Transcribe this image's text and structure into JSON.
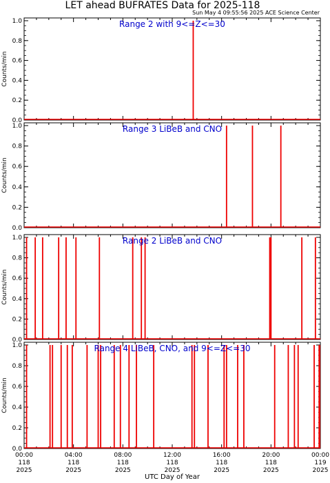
{
  "header": {
    "title": "LET ahead BUFRATES Data for 2025-118",
    "timestamp": "Sun May  4 09:55:56 2025 ACE Science Center"
  },
  "x_axis": {
    "label": "UTC Day of Year",
    "ticks": [
      {
        "x": 0,
        "l1": "00:00",
        "l2": "118",
        "l3": "2025"
      },
      {
        "x": 4,
        "l1": "04:00",
        "l2": "118",
        "l3": "2025"
      },
      {
        "x": 8,
        "l1": "08:00",
        "l2": "118",
        "l3": "2025"
      },
      {
        "x": 12,
        "l1": "12:00",
        "l2": "118",
        "l3": "2025"
      },
      {
        "x": 16,
        "l1": "16:00",
        "l2": "118",
        "l3": "2025"
      },
      {
        "x": 20,
        "l1": "20:00",
        "l2": "118",
        "l3": "2025"
      },
      {
        "x": 24,
        "l1": "00:00",
        "l2": "119",
        "l3": "2025"
      }
    ]
  },
  "chart_data": [
    {
      "type": "line",
      "title": "Range 2 with 9<=Z<=30",
      "ylabel": "Counts/min",
      "xlim": [
        0,
        24
      ],
      "ylim": [
        0,
        1.0
      ],
      "yticks": [
        "0.0",
        "0.2",
        "0.4",
        "0.6",
        "0.8",
        "1.0"
      ],
      "series": [
        {
          "color": "#ee0000",
          "spikes": [
            13.7
          ]
        }
      ]
    },
    {
      "type": "line",
      "title": "Range 3 LiBeB and CNO",
      "ylabel": "Counts/min",
      "xlim": [
        0,
        24
      ],
      "ylim": [
        0,
        1.0
      ],
      "yticks": [
        "0.0",
        "0.2",
        "0.4",
        "0.6",
        "0.8",
        "1.0"
      ],
      "series": [
        {
          "color": "#ee0000",
          "spikes": [
            16.4,
            18.5,
            20.8
          ]
        }
      ]
    },
    {
      "type": "line",
      "title": "Range 2 LiBeB and CNO",
      "ylabel": "Counts/min",
      "xlim": [
        0,
        24
      ],
      "ylim": [
        0,
        1.0
      ],
      "yticks": [
        "0.0",
        "0.2",
        "0.4",
        "0.6",
        "0.8",
        "1.0"
      ],
      "series": [
        {
          "color": "#ee0000",
          "spikes": [
            0.2,
            0.9,
            1.5,
            2.8,
            3.4,
            4.2,
            6.1,
            8.8,
            9.5,
            9.8,
            19.9,
            20.0,
            22.5,
            23.6
          ]
        }
      ]
    },
    {
      "type": "line",
      "title": "Range 4 LiBeB, CNO, and 9<=Z<=30",
      "ylabel": "Counts/min",
      "xlim": [
        0,
        24
      ],
      "ylim": [
        0,
        1.0
      ],
      "yticks": [
        "0.0",
        "0.2",
        "0.4",
        "0.6",
        "0.8",
        "1.0"
      ],
      "series": [
        {
          "color": "#ee0000",
          "spikes": [
            0.2,
            2.1,
            2.3,
            3.0,
            3.5,
            3.9,
            5.1,
            6.0,
            6.2,
            7.3,
            7.8,
            8.5,
            9.1,
            10.5,
            13.6,
            13.8,
            14.9,
            16.2,
            16.4,
            17.3,
            17.8,
            20.3,
            21.4,
            21.9,
            22.2,
            23.5,
            23.9,
            24.0
          ]
        }
      ]
    }
  ]
}
